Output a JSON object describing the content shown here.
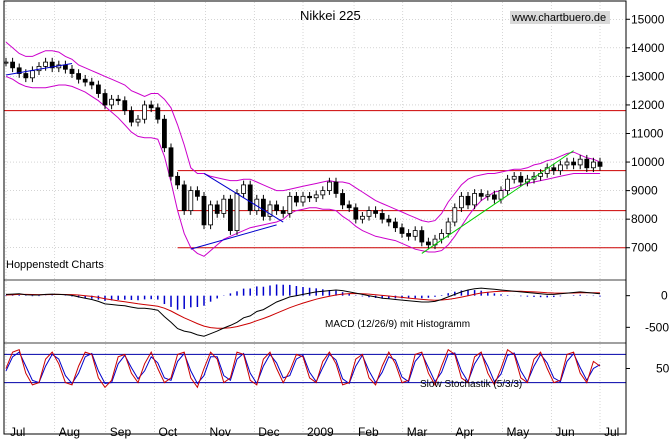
{
  "title": "Nikkei 225",
  "watermark": "www.chartbuero.de",
  "panel_label": "Hoppenstedt Charts",
  "chart_data": [
    {
      "type": "line",
      "name": "price",
      "title": "Nikkei 225",
      "ylim": [
        6500,
        15500
      ],
      "yticks": [
        7000,
        8000,
        9000,
        10000,
        11000,
        12000,
        13000,
        14000,
        15000
      ],
      "x_labels": [
        "Jul",
        "Aug",
        "Sep",
        "Oct",
        "Nov",
        "Dec",
        "2009",
        "Feb",
        "Mar",
        "Apr",
        "May",
        "Jun",
        "Jul"
      ],
      "x_label_positions": [
        0,
        21,
        43,
        64,
        86,
        107,
        128,
        150,
        171,
        192,
        214,
        235,
        256
      ],
      "series_close": [
        13500,
        13300,
        13100,
        12950,
        13200,
        13350,
        13500,
        13300,
        13400,
        13250,
        13100,
        12900,
        12800,
        12700,
        12400,
        12000,
        12200,
        12150,
        11800,
        11400,
        11500,
        12000,
        11900,
        11500,
        10500,
        9500,
        9200,
        8300,
        9000,
        8800,
        7800,
        8500,
        8200,
        8700,
        7600,
        8900,
        9200,
        8300,
        8700,
        8100,
        8500,
        8300,
        8200,
        8800,
        8600,
        8800,
        8750,
        8850,
        9000,
        9300,
        8900,
        8500,
        8400,
        8000,
        8100,
        8300,
        8200,
        8000,
        7900,
        7700,
        7500,
        7400,
        7600,
        7200,
        7100,
        7300,
        7500,
        7900,
        8400,
        8800,
        8500,
        8900,
        8800,
        8850,
        8700,
        9000,
        9400,
        9500,
        9300,
        9400,
        9500,
        9600,
        9800,
        9700,
        9900,
        10000,
        9900,
        10100,
        9800,
        10000,
        9850
      ],
      "bollinger_upper": [
        14200,
        14000,
        13800,
        13700,
        13700,
        13800,
        13900,
        13900,
        13850,
        13700,
        13600,
        13400,
        13300,
        13200,
        13100,
        13000,
        12900,
        12800,
        12700,
        12500,
        12400,
        12300,
        12400,
        12400,
        12200,
        11900,
        11300,
        10600,
        9800,
        9600,
        9600,
        9500,
        9450,
        9400,
        9350,
        9350,
        9400,
        9400,
        9300,
        9200,
        9100,
        9000,
        9000,
        9050,
        9100,
        9150,
        9200,
        9250,
        9300,
        9350,
        9300,
        9300,
        9250,
        9100,
        8950,
        8800,
        8650,
        8550,
        8450,
        8350,
        8250,
        8150,
        8050,
        7950,
        7900,
        7950,
        8200,
        8600,
        8900,
        9200,
        9400,
        9500,
        9550,
        9600,
        9600,
        9650,
        9700,
        9750,
        9750,
        9800,
        9900,
        9950,
        10050,
        10100,
        10200,
        10300,
        10350,
        10250,
        10150,
        10100,
        10000
      ],
      "bollinger_lower": [
        13000,
        12900,
        12750,
        12650,
        12600,
        12600,
        12600,
        12650,
        12700,
        12700,
        12650,
        12550,
        12450,
        12300,
        12150,
        11950,
        11750,
        11550,
        11300,
        11050,
        10900,
        10850,
        10850,
        10800,
        10200,
        9300,
        8300,
        7500,
        7000,
        6800,
        6700,
        6900,
        7100,
        7300,
        7400,
        7500,
        7600,
        7700,
        7750,
        7800,
        7850,
        7900,
        8000,
        8200,
        8300,
        8350,
        8400,
        8400,
        8350,
        8350,
        8300,
        8100,
        7950,
        7750,
        7600,
        7500,
        7400,
        7350,
        7300,
        7250,
        7150,
        7050,
        6950,
        6900,
        6850,
        6850,
        6900,
        7100,
        7400,
        7750,
        8100,
        8400,
        8650,
        8800,
        8950,
        9000,
        9050,
        9100,
        9200,
        9250,
        9300,
        9350,
        9400,
        9450,
        9500,
        9550,
        9600,
        9600,
        9600,
        9600,
        9600
      ],
      "horizontal_lines": [
        11800,
        9700,
        8300,
        7000
      ],
      "trendlines": [
        {
          "from": [
            0,
            13050
          ],
          "to": [
            10,
            13450
          ]
        },
        {
          "from": [
            28,
            6950
          ],
          "to": [
            41,
            7800
          ]
        },
        {
          "from": [
            30,
            9600
          ],
          "to": [
            42,
            7900
          ]
        },
        {
          "from": [
            63,
            6800
          ],
          "to": [
            86,
            10400
          ]
        }
      ]
    },
    {
      "type": "bar",
      "name": "macd",
      "title": "MACD (12/26/9) mit Histogramm",
      "ylim": [
        -700,
        200
      ],
      "yticks": [
        0,
        -500
      ],
      "macd_line": [
        20,
        25,
        30,
        15,
        10,
        10,
        20,
        25,
        20,
        15,
        5,
        -20,
        -40,
        -60,
        -90,
        -130,
        -140,
        -150,
        -160,
        -180,
        -200,
        -200,
        -210,
        -230,
        -330,
        -420,
        -520,
        -560,
        -580,
        -620,
        -640,
        -600,
        -560,
        -510,
        -470,
        -420,
        -350,
        -320,
        -250,
        -220,
        -160,
        -100,
        -60,
        -20,
        0,
        20,
        40,
        60,
        70,
        80,
        90,
        80,
        60,
        40,
        20,
        0,
        -20,
        -40,
        -50,
        -60,
        -70,
        -80,
        -90,
        -100,
        -100,
        -90,
        -60,
        -20,
        20,
        60,
        90,
        110,
        120,
        110,
        100,
        90,
        80,
        70,
        60,
        50,
        40,
        30,
        20,
        20,
        30,
        40,
        50,
        60,
        50,
        40,
        30
      ],
      "signal_line": [
        10,
        15,
        20,
        20,
        18,
        17,
        17,
        19,
        20,
        19,
        17,
        10,
        0,
        -12,
        -28,
        -48,
        -66,
        -82,
        -97,
        -112,
        -128,
        -141,
        -154,
        -168,
        -198,
        -242,
        -298,
        -350,
        -396,
        -441,
        -481,
        -505,
        -516,
        -515,
        -506,
        -489,
        -461,
        -433,
        -396,
        -361,
        -321,
        -277,
        -233,
        -190,
        -152,
        -117,
        -85,
        -56,
        -31,
        -9,
        11,
        25,
        32,
        34,
        31,
        25,
        16,
        5,
        -6,
        -17,
        -28,
        -38,
        -49,
        -59,
        -67,
        -72,
        -69,
        -59,
        -43,
        -22,
        0,
        22,
        42,
        55,
        64,
        69,
        71,
        71,
        69,
        65,
        60,
        54,
        47,
        42,
        40,
        40,
        42,
        46,
        47,
        46,
        43
      ]
    },
    {
      "type": "line",
      "name": "stochastic",
      "title": "Slow Stochastik (5/3/3)",
      "ylim": [
        0,
        100
      ],
      "yticks": [
        50
      ],
      "bands": [
        80,
        20
      ],
      "k_line": [
        50,
        85,
        90,
        40,
        15,
        20,
        70,
        85,
        60,
        20,
        15,
        55,
        85,
        80,
        30,
        10,
        25,
        75,
        80,
        40,
        20,
        60,
        85,
        50,
        20,
        30,
        80,
        85,
        30,
        10,
        50,
        85,
        70,
        20,
        30,
        85,
        80,
        25,
        15,
        70,
        85,
        50,
        20,
        45,
        80,
        75,
        30,
        20,
        65,
        85,
        60,
        15,
        20,
        70,
        80,
        30,
        15,
        55,
        85,
        60,
        20,
        25,
        80,
        85,
        40,
        15,
        55,
        90,
        80,
        30,
        20,
        75,
        85,
        40,
        15,
        50,
        90,
        80,
        30,
        20,
        70,
        85,
        50,
        20,
        25,
        80,
        85,
        40,
        20,
        65,
        55
      ],
      "d_line": [
        45,
        75,
        85,
        55,
        25,
        20,
        55,
        80,
        70,
        35,
        18,
        40,
        75,
        82,
        45,
        18,
        20,
        60,
        78,
        52,
        28,
        45,
        75,
        62,
        30,
        25,
        65,
        82,
        45,
        18,
        35,
        75,
        75,
        35,
        25,
        70,
        82,
        40,
        18,
        55,
        80,
        62,
        30,
        35,
        70,
        78,
        42,
        22,
        52,
        80,
        68,
        28,
        18,
        55,
        78,
        45,
        20,
        42,
        75,
        68,
        32,
        22,
        65,
        82,
        52,
        22,
        42,
        80,
        83,
        45,
        22,
        60,
        82,
        55,
        22,
        38,
        78,
        83,
        45,
        22,
        55,
        80,
        62,
        30,
        22,
        65,
        82,
        52,
        25,
        50,
        58
      ]
    }
  ]
}
